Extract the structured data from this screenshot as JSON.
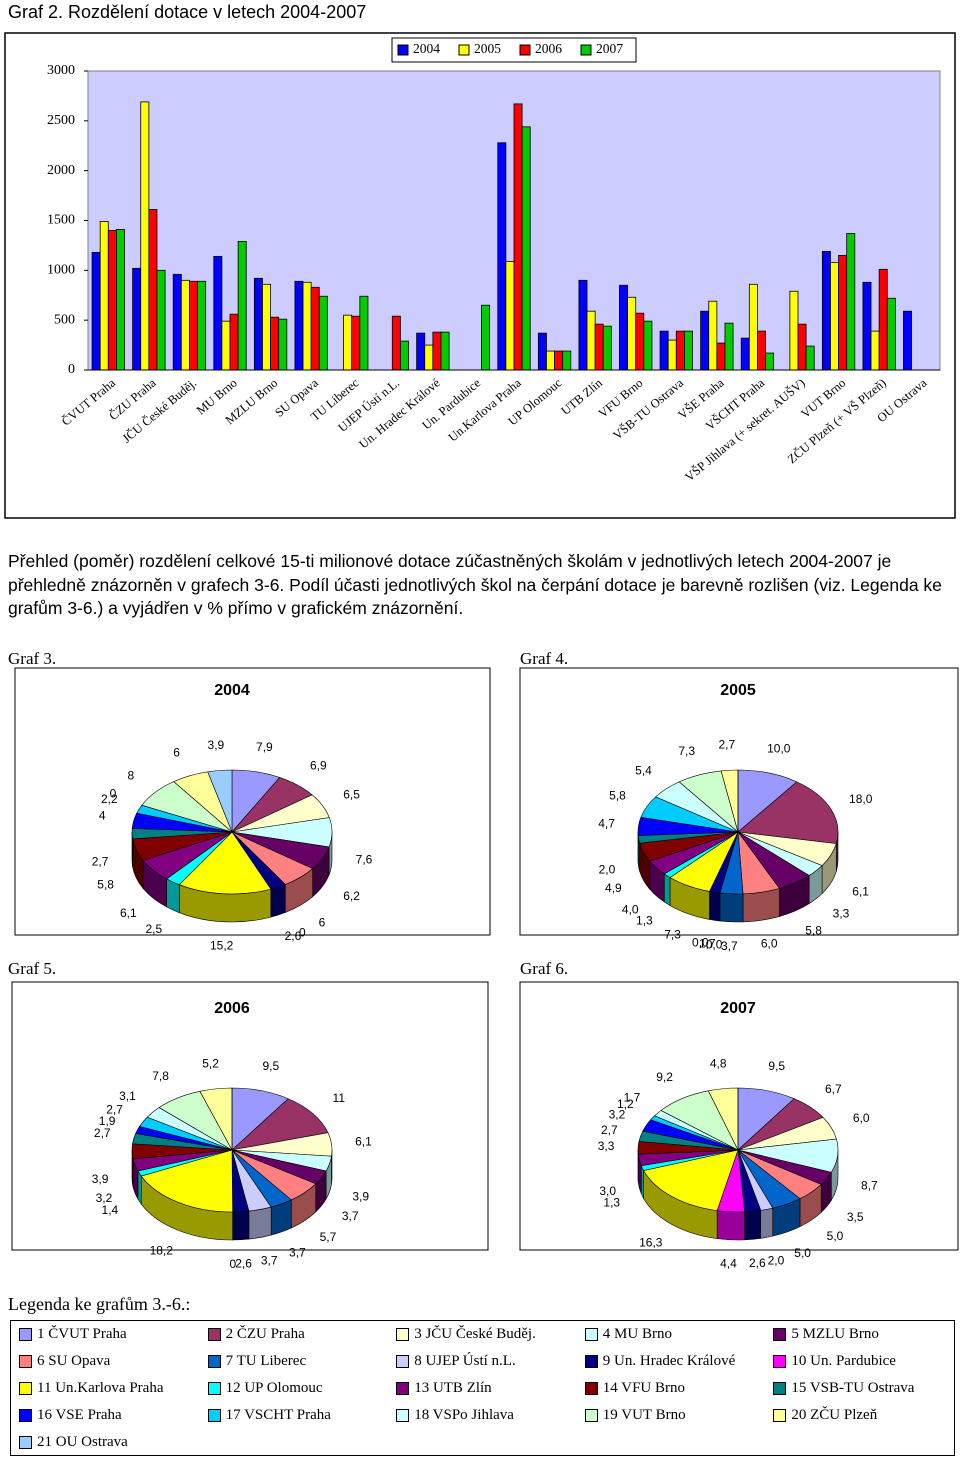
{
  "heading_note": "Přehled (poměr) rozdělení celkové 15-ti milionové dotace zúčastněných školám v jednotlivých letech 2004-2007 je přehledně znázorněn v grafech 3-6. Podíl účasti jednotlivých škol na čerpání dotace je barevně rozlišen (viz. Legenda ke grafům 3-6.) a vyjádřen v % přímo v grafickém znázornění.",
  "captions": [
    "Graf 3.",
    "Graf 4.",
    "Graf 5.",
    "Graf 6."
  ],
  "legend": {
    "title": "Legenda ke grafům 3.-6.:",
    "items": [
      {
        "label": "1 ČVUT Praha",
        "color": "#9999FF"
      },
      {
        "label": "2 ČZU Praha",
        "color": "#993366"
      },
      {
        "label": "3 JČU České Buděj.",
        "color": "#FFFFCC"
      },
      {
        "label": "4 MU Brno",
        "color": "#CCFFFF"
      },
      {
        "label": "5 MZLU Brno",
        "color": "#660066"
      },
      {
        "label": "6 SU Opava",
        "color": "#FF8080"
      },
      {
        "label": "7 TU Liberec",
        "color": "#0066CC"
      },
      {
        "label": "8 UJEP Ústí n.L.",
        "color": "#CCCCFF"
      },
      {
        "label": "9 Un. Hradec Králové",
        "color": "#000080"
      },
      {
        "label": "10 Un. Pardubice",
        "color": "#FF00FF"
      },
      {
        "label": "11 Un.Karlova Praha",
        "color": "#FFFF00"
      },
      {
        "label": "12 UP Olomouc",
        "color": "#00FFFF"
      },
      {
        "label": "13 UTB Zlín",
        "color": "#800080"
      },
      {
        "label": "14 VFU Brno",
        "color": "#800000"
      },
      {
        "label": "15 VSB-TU Ostrava",
        "color": "#008080"
      },
      {
        "label": "16 VSE Praha",
        "color": "#0000FF"
      },
      {
        "label": "17 VSCHT Praha",
        "color": "#00CCFF"
      },
      {
        "label": "18 VSPo Jihlava",
        "color": "#CCFFFF"
      },
      {
        "label": "19 VUT Brno",
        "color": "#CCFFCC"
      },
      {
        "label": "20 ZČU Plzeň",
        "color": "#FFFF99"
      },
      {
        "label": "21 OU Ostrava",
        "color": "#99CCFF"
      }
    ]
  },
  "chart_data": [
    {
      "type": "bar",
      "title": "Graf 2. Rozdělení dotace v letech 2004-2007",
      "categories": [
        "ČVUT Praha",
        "ČZU Praha",
        "JČU České Buděj.",
        "MU Brno",
        "MZLU Brno",
        "SU Opava",
        "TU Liberec",
        "UJEP Ústí n.L.",
        "Un. Hradec Králové",
        "Un. Pardubice",
        "Un.Karlova Praha",
        "UP Olomouc",
        "UTB Zlín",
        "VFU Brno",
        "VŠB-TU Ostrava",
        "VŠE Praha",
        "VŠCHT Praha",
        "VŠP Jihlava (+ sekret. AUŠV)",
        "VUT Brno",
        "ZČU Plzeň (+ VŠ Plzeň)",
        "OU Ostrava"
      ],
      "series": [
        {
          "name": "2004",
          "color": "#0000FF",
          "values": [
            1180,
            1020,
            960,
            1140,
            920,
            890,
            null,
            null,
            370,
            null,
            2280,
            370,
            900,
            850,
            390,
            590,
            320,
            null,
            1190,
            880,
            590
          ]
        },
        {
          "name": "2005",
          "color": "#FFFF00",
          "values": [
            1490,
            2690,
            900,
            490,
            860,
            880,
            550,
            null,
            250,
            null,
            1090,
            190,
            590,
            730,
            300,
            690,
            860,
            790,
            1080,
            390,
            null
          ]
        },
        {
          "name": "2006",
          "color": "#FF0000",
          "values": [
            1400,
            1610,
            890,
            560,
            530,
            830,
            540,
            540,
            380,
            null,
            2670,
            190,
            460,
            570,
            390,
            270,
            390,
            460,
            1150,
            1010,
            null
          ]
        },
        {
          "name": "2007",
          "color": "#00CC00",
          "values": [
            1410,
            1000,
            890,
            1290,
            510,
            740,
            740,
            290,
            380,
            650,
            2440,
            190,
            440,
            490,
            390,
            470,
            170,
            240,
            1370,
            720,
            null
          ]
        }
      ],
      "ylim": [
        0,
        3000
      ],
      "yticks": [
        0,
        500,
        1000,
        1500,
        2000,
        2500,
        3000
      ],
      "legend": "top-right"
    },
    {
      "type": "pie",
      "title": "2004",
      "values": [
        7.9,
        6.9,
        6.5,
        7.6,
        6.2,
        6,
        0,
        0,
        2.6,
        0,
        15.2,
        2.5,
        6.1,
        5.8,
        2.7,
        4,
        2.2,
        0,
        8,
        6,
        3.9
      ],
      "value_labels": [
        "7,9",
        "6,9",
        "6,5",
        "7,6",
        "6,2",
        "6",
        null,
        "0",
        "2,6",
        null,
        "15,2",
        "2,5",
        "6,1",
        "5,8",
        "2,7",
        "4",
        "2,2",
        "0",
        "8",
        "6",
        "3,9"
      ]
    },
    {
      "type": "pie",
      "title": "2005",
      "values": [
        10.0,
        18.0,
        6.1,
        3.3,
        5.8,
        6.0,
        3.7,
        0.0,
        1.7,
        0.0,
        7.3,
        1.3,
        4.0,
        4.9,
        2.0,
        4.7,
        5.8,
        5.4,
        7.3,
        2.7,
        0
      ],
      "value_labels": [
        "10,0",
        "18,0",
        "6,1",
        "3,3",
        "5,8",
        "6,0",
        "3,7",
        "0,0",
        "1,7",
        "0,0",
        "7,3",
        "1,3",
        "4,0",
        "4,9",
        "2,0",
        "4,7",
        "5,8",
        "5,4",
        "7,3",
        "2,7",
        null
      ]
    },
    {
      "type": "pie",
      "title": "2006",
      "values": [
        9.5,
        11,
        6.1,
        3.9,
        3.7,
        5.7,
        3.7,
        3.7,
        2.6,
        0,
        18.2,
        1.4,
        3.2,
        3.9,
        2.7,
        1.9,
        2.7,
        3.1,
        7.8,
        5.2,
        0
      ],
      "value_labels": [
        "9,5",
        "11",
        "6,1",
        "3,9",
        "3,7",
        "5,7",
        "3,7",
        "3,7",
        "2,6",
        "0",
        "18,2",
        "1,4",
        "3,2",
        "3,9",
        "2,7",
        "1,9",
        "2,7",
        "3,1",
        "7,8",
        "5,2",
        null
      ]
    },
    {
      "type": "pie",
      "title": "2007",
      "values": [
        9.5,
        6.7,
        6.0,
        8.7,
        3.5,
        5.0,
        5.0,
        2.0,
        2.6,
        4.4,
        16.3,
        1.3,
        3.0,
        3.3,
        2.7,
        3.2,
        1.2,
        1.7,
        9.2,
        4.8,
        0
      ],
      "value_labels": [
        "9,5",
        "6,7",
        "6,0",
        "8,7",
        "3,5",
        "5,0",
        "5,0",
        "2,0",
        "2,6",
        "4,4",
        "16,3",
        "1,3",
        "3,0",
        "3,3",
        "2,7",
        "3,2",
        "1,2",
        "1,7",
        "9,2",
        "4,8",
        null
      ]
    }
  ]
}
